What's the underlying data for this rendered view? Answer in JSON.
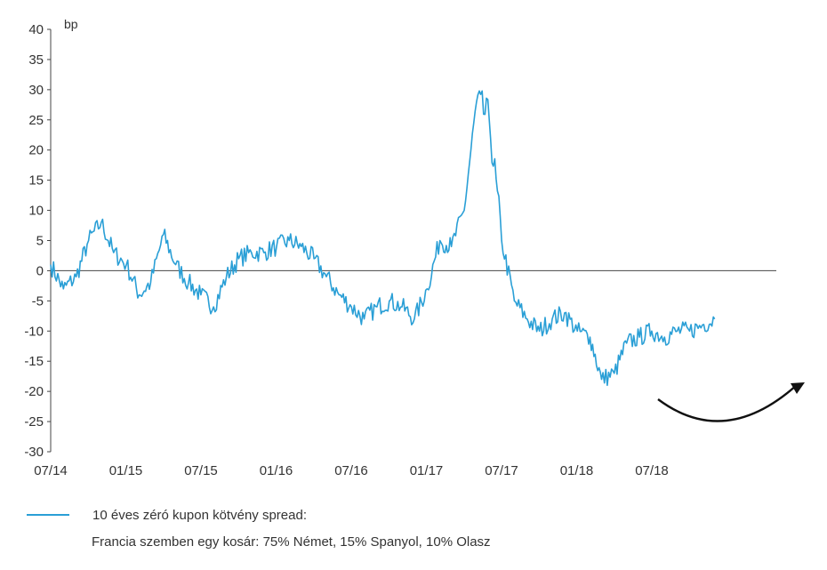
{
  "chart_data": {
    "type": "line",
    "unit_label": "bp",
    "ylim": [
      -30,
      40
    ],
    "yticks": [
      40,
      35,
      30,
      25,
      20,
      15,
      10,
      5,
      0,
      -5,
      -10,
      -15,
      -20,
      -25,
      -30
    ],
    "xtick_labels": [
      "07/14",
      "01/15",
      "07/15",
      "01/16",
      "07/16",
      "01/17",
      "07/17",
      "01/18",
      "07/18"
    ],
    "x_start": "2014-07",
    "x_end": "2018-12",
    "grid": false,
    "line_color": "#2a9fd6",
    "annotation": "curved black arrow rising to the right, indicating an upward turn",
    "series": [
      {
        "name": "10 éves zéró kupon  kötvény spread:",
        "x": [
          "2014-07-01",
          "2014-08-01",
          "2014-09-01",
          "2014-10-01",
          "2014-11-01",
          "2014-12-01",
          "2015-01-01",
          "2015-02-01",
          "2015-03-01",
          "2015-04-01",
          "2015-05-01",
          "2015-06-01",
          "2015-07-01",
          "2015-08-01",
          "2015-09-01",
          "2015-10-01",
          "2015-11-01",
          "2015-12-01",
          "2016-01-01",
          "2016-02-01",
          "2016-03-01",
          "2016-04-01",
          "2016-05-01",
          "2016-06-01",
          "2016-07-01",
          "2016-08-01",
          "2016-09-01",
          "2016-10-01",
          "2016-11-01",
          "2016-12-01",
          "2017-01-01",
          "2017-02-01",
          "2017-03-01",
          "2017-04-01",
          "2017-05-01",
          "2017-06-01",
          "2017-07-01",
          "2017-08-01",
          "2017-09-01",
          "2017-10-01",
          "2017-11-01",
          "2017-12-01",
          "2018-01-01",
          "2018-02-01",
          "2018-03-01",
          "2018-04-01",
          "2018-05-01",
          "2018-06-01",
          "2018-07-01",
          "2018-08-01",
          "2018-09-01",
          "2018-10-01",
          "2018-11-01",
          "2018-12-01"
        ],
        "y": [
          1,
          -3,
          -1,
          5,
          8,
          3,
          1,
          -4,
          -2,
          6,
          1,
          -2,
          -4,
          -6,
          -1,
          2,
          3,
          3,
          4,
          5,
          4,
          2,
          -1,
          -4,
          -6,
          -8,
          -6,
          -5,
          -6,
          -8,
          -3,
          5,
          4,
          10,
          28,
          25,
          5,
          -5,
          -8,
          -10,
          -8,
          -7,
          -10,
          -11,
          -18,
          -17,
          -12,
          -11,
          -10,
          -11,
          -10,
          -10,
          -9,
          -8
        ]
      }
    ]
  },
  "legend_note": "Francia szemben egy kosár: 75% Német, 15% Spanyol, 10% Olasz"
}
